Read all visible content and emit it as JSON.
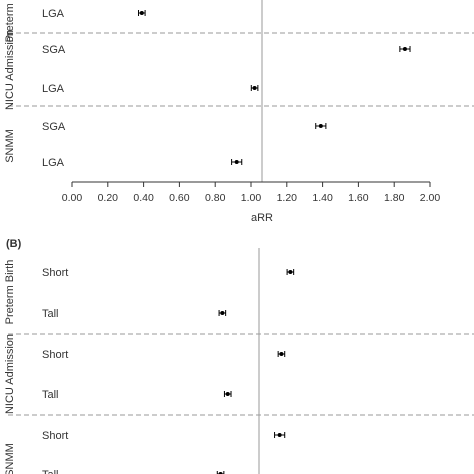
{
  "chart_data": [
    {
      "panel": "",
      "type": "scatter",
      "xlabel": "aRR",
      "xlim": [
        0,
        2
      ],
      "x_ticks": [
        "0.00",
        "0.20",
        "0.40",
        "0.60",
        "0.80",
        "1.00",
        "1.20",
        "1.40",
        "1.60",
        "1.80",
        "2.00"
      ],
      "reference_line": 1.0,
      "groups": [
        {
          "label": "Preterm Birth",
          "rows": [
            {
              "label": "LGA",
              "value": 0.39,
              "ci": [
                0.38,
                0.4
              ]
            }
          ]
        },
        {
          "label": "NICU Admission",
          "rows": [
            {
              "label": "SGA",
              "value": 1.86,
              "ci": [
                1.84,
                1.88
              ]
            },
            {
              "label": "LGA",
              "value": 1.02,
              "ci": [
                1.01,
                1.03
              ]
            }
          ]
        },
        {
          "label": "SNMM",
          "rows": [
            {
              "label": "SGA",
              "value": 1.39,
              "ci": [
                1.37,
                1.41
              ]
            },
            {
              "label": "LGA",
              "value": 0.92,
              "ci": [
                0.9,
                0.94
              ]
            }
          ]
        }
      ]
    },
    {
      "panel": "(B)",
      "type": "scatter",
      "xlabel": "",
      "xlim": [
        0,
        2
      ],
      "reference_line": 1.0,
      "groups": [
        {
          "label": "Preterm Birth",
          "rows": [
            {
              "label": "Short",
              "value": 1.22,
              "ci": [
                1.21,
                1.23
              ]
            },
            {
              "label": "Tall",
              "value": 0.84,
              "ci": [
                0.83,
                0.85
              ]
            }
          ]
        },
        {
          "label": "NICU Admission",
          "rows": [
            {
              "label": "Short",
              "value": 1.17,
              "ci": [
                1.16,
                1.18
              ]
            },
            {
              "label": "Tall",
              "value": 0.87,
              "ci": [
                0.86,
                0.88
              ]
            }
          ]
        },
        {
          "label": "SNMM",
          "rows": [
            {
              "label": "Short",
              "value": 1.16,
              "ci": [
                1.14,
                1.18
              ]
            },
            {
              "label": "Tall",
              "value": 0.83,
              "ci": [
                0.82,
                0.84
              ]
            }
          ]
        }
      ]
    }
  ]
}
